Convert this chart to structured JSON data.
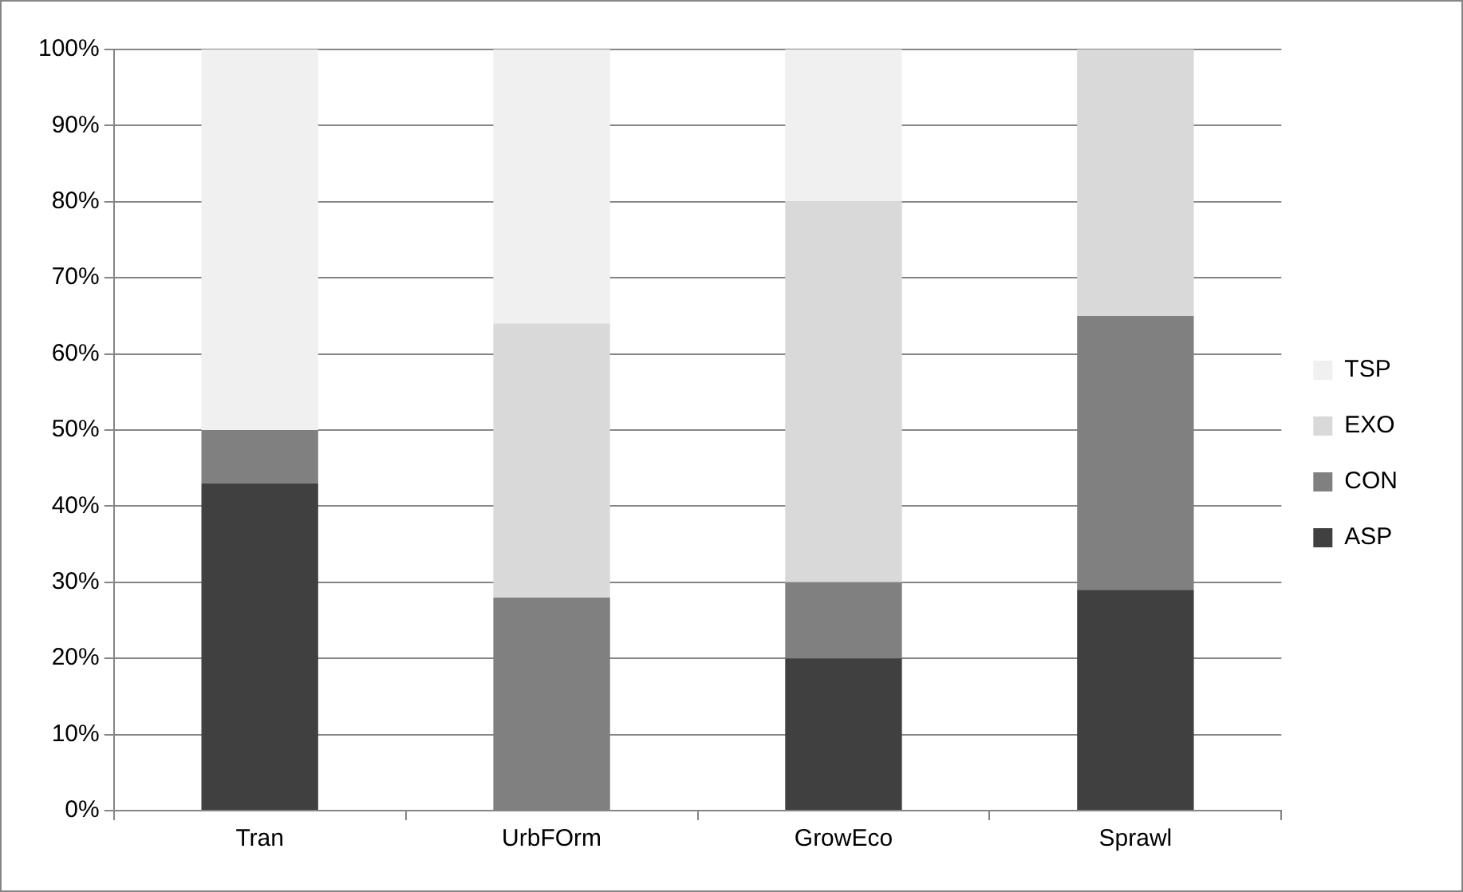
{
  "chart_data": {
    "type": "bar",
    "stacked": true,
    "categories": [
      "Tran",
      "UrbFOrm",
      "GrowEco",
      "Sprawl"
    ],
    "series": [
      {
        "name": "ASP",
        "color": "#404040",
        "values": [
          43,
          0,
          20,
          29
        ]
      },
      {
        "name": "CON",
        "color": "#808080",
        "values": [
          7,
          28,
          10,
          36
        ]
      },
      {
        "name": "EXO",
        "color": "#d9d9d9",
        "values": [
          0,
          36,
          50,
          35
        ]
      },
      {
        "name": "TSP",
        "color": "#f0f0f0",
        "values": [
          50,
          36,
          20,
          0
        ]
      }
    ],
    "ylim": [
      0,
      100
    ],
    "yticks": [
      {
        "value": 0,
        "label": "0%"
      },
      {
        "value": 10,
        "label": "10%"
      },
      {
        "value": 20,
        "label": "20%"
      },
      {
        "value": 30,
        "label": "30%"
      },
      {
        "value": 40,
        "label": "40%"
      },
      {
        "value": 50,
        "label": "50%"
      },
      {
        "value": 60,
        "label": "60%"
      },
      {
        "value": 70,
        "label": "70%"
      },
      {
        "value": 80,
        "label": "80%"
      },
      {
        "value": 90,
        "label": "90%"
      },
      {
        "value": 100,
        "label": "100%"
      }
    ],
    "grid": "y",
    "legend": "right"
  }
}
